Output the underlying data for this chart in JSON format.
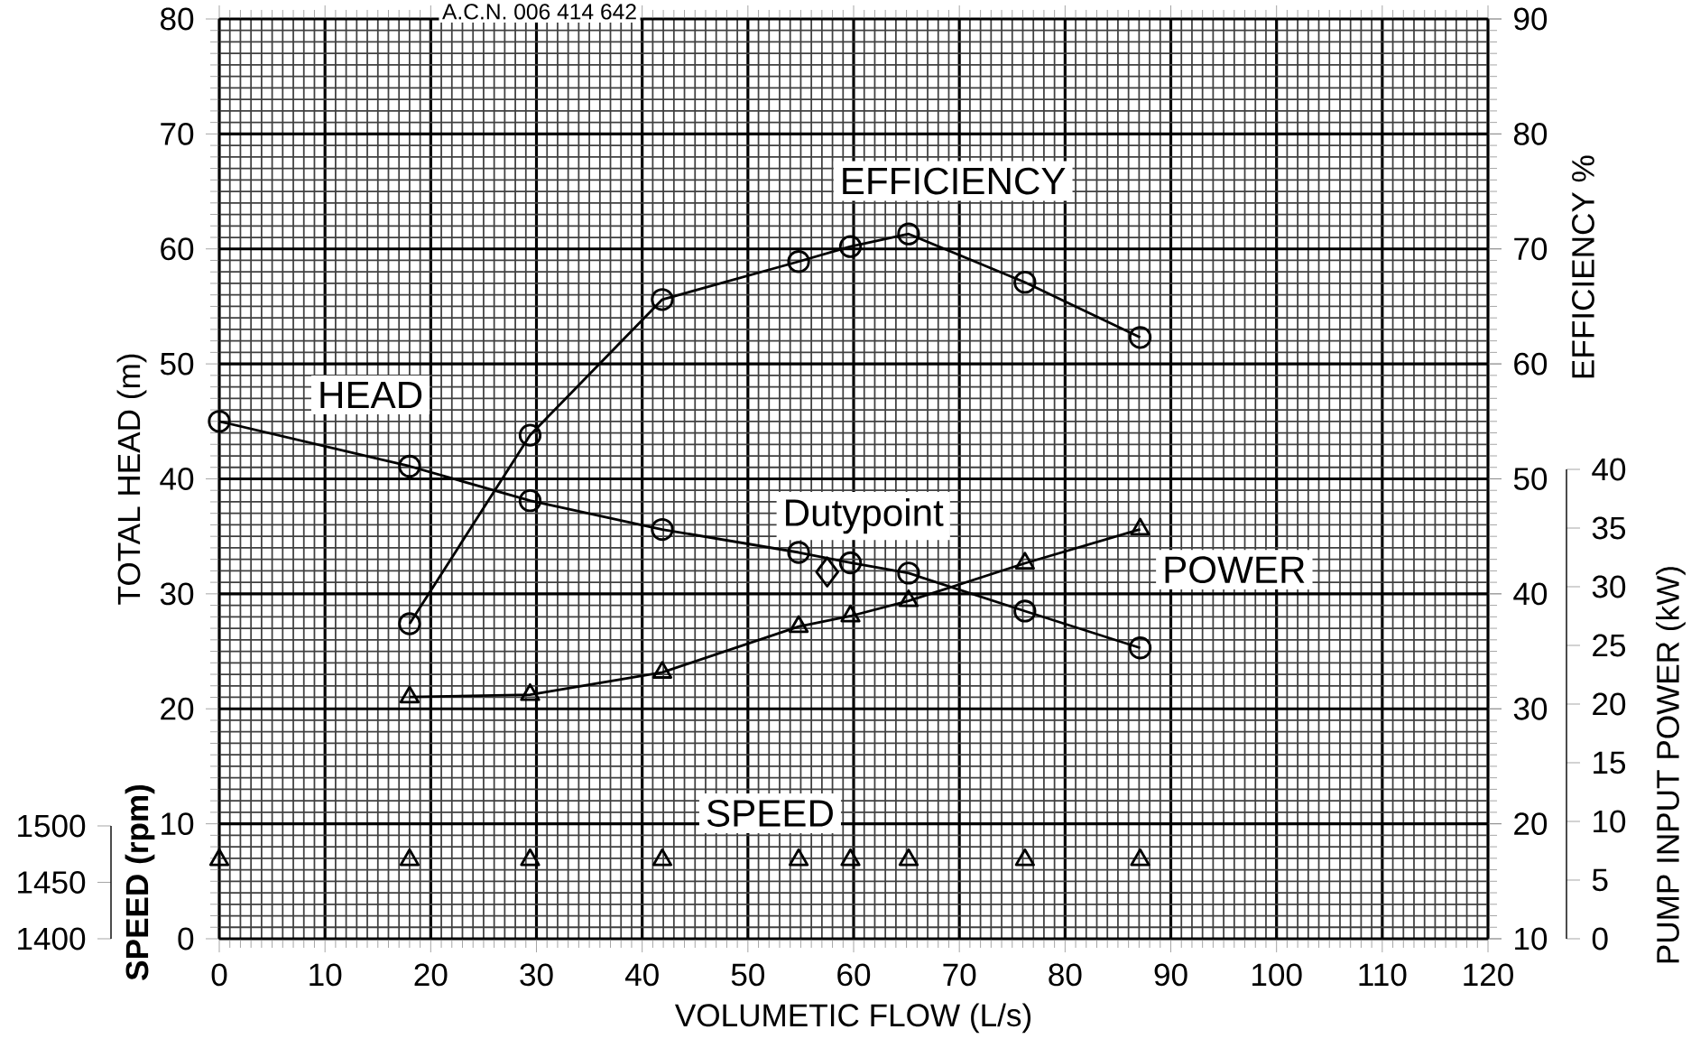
{
  "chart_data": [
    {
      "type": "line",
      "xlabel": "VOLUMETIC FLOW (L/s)",
      "ylabel": "TOTAL HEAD (m)",
      "y2label": "EFFICIENCY %",
      "y3label": "PUMP INPUT POWER (kW)",
      "xlim": [
        0,
        120
      ],
      "xticks": [
        0,
        10,
        20,
        30,
        40,
        50,
        60,
        70,
        80,
        90,
        100,
        110,
        120
      ],
      "ylim": [
        0,
        80
      ],
      "yticks": [
        0,
        10,
        20,
        30,
        40,
        50,
        60,
        70,
        80
      ],
      "y2lim": [
        10,
        90
      ],
      "y2ticks": [
        10,
        20,
        30,
        40,
        50,
        60,
        70,
        80,
        90
      ],
      "y3lim": [
        0,
        40
      ],
      "y3ticks": [
        0,
        5,
        10,
        15,
        20,
        25,
        30,
        35,
        40
      ],
      "grid": true,
      "annotations": [
        "A.C.N. 006 414 642",
        {
          "text": "Dutypoint",
          "x": 57.5,
          "y": 31.9
        }
      ],
      "series": [
        {
          "name": "HEAD",
          "marker": "circle",
          "color": "#000000",
          "x": [
            0,
            18,
            29.4,
            41.9,
            54.8,
            59.7,
            65.2,
            76.2,
            87.1
          ],
          "values": [
            45,
            41.1,
            38.1,
            35.6,
            33.6,
            32.7,
            31.8,
            28.5,
            25.3
          ]
        },
        {
          "name": "EFFICIENCY",
          "axis": "y2",
          "marker": "circle",
          "color": "#000000",
          "x": [
            18,
            29.4,
            41.9,
            54.8,
            59.7,
            65.2,
            76.2,
            87.1
          ],
          "values": [
            37.4,
            53.8,
            65.6,
            68.9,
            70.2,
            71.3,
            67.1,
            62.3
          ]
        },
        {
          "name": "POWER",
          "axis": "y3",
          "marker": "triangle",
          "color": "#000000",
          "x": [
            18,
            29.4,
            41.9,
            54.8,
            59.7,
            65.2,
            76.2,
            87.1
          ],
          "values": [
            20.6,
            20.8,
            22.7,
            26.6,
            27.5,
            28.8,
            32,
            34.9
          ]
        },
        {
          "type": "scatter",
          "marker": "diamond",
          "color": "#000000",
          "x": [
            57.5
          ],
          "values": [
            31.9
          ]
        }
      ]
    },
    {
      "type": "scatter",
      "ylabel": "SPEED (rpm)",
      "xlim": [
        0,
        120
      ],
      "ylim": [
        1400,
        1500
      ],
      "yticks": [
        1400,
        1450,
        1500
      ],
      "tick_labels": "y",
      "marker": "triangle",
      "series": [
        {
          "name": "SPEED",
          "color": "#000000",
          "x": [
            0,
            18,
            29.4,
            41.9,
            54.8,
            59.7,
            65.2,
            76.2,
            87.1
          ],
          "values": [
            1470,
            1470,
            1470,
            1470,
            1470,
            1470,
            1470,
            1470,
            1470
          ]
        }
      ]
    }
  ]
}
